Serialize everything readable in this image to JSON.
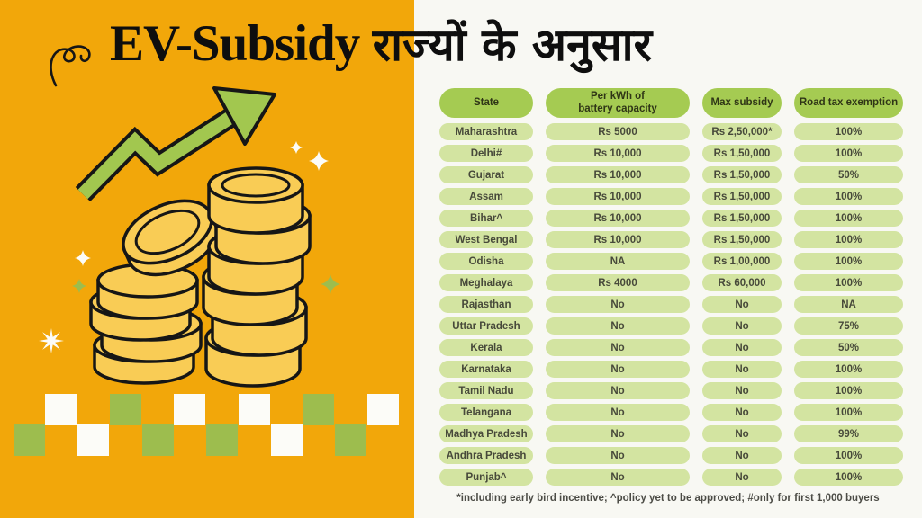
{
  "header": {
    "title_en": "EV-Subsidy",
    "title_hi": "राज्यों के अनुसार"
  },
  "chart_data": {
    "type": "table",
    "title": "EV-Subsidy राज्यों के अनुसार",
    "columns": [
      "State",
      "Per kWh of\nbattery capacity",
      "Max subsidy",
      "Road tax exemption"
    ],
    "rows": [
      [
        "Maharashtra",
        "Rs 5000",
        "Rs 2,50,000*",
        "100%"
      ],
      [
        "Delhi#",
        "Rs 10,000",
        "Rs 1,50,000",
        "100%"
      ],
      [
        "Gujarat",
        "Rs 10,000",
        "Rs 1,50,000",
        "50%"
      ],
      [
        "Assam",
        "Rs 10,000",
        "Rs 1,50,000",
        "100%"
      ],
      [
        "Bihar^",
        "Rs 10,000",
        "Rs 1,50,000",
        "100%"
      ],
      [
        "West Bengal",
        "Rs 10,000",
        "Rs 1,50,000",
        "100%"
      ],
      [
        "Odisha",
        "NA",
        "Rs 1,00,000",
        "100%"
      ],
      [
        "Meghalaya",
        "Rs 4000",
        "Rs 60,000",
        "100%"
      ],
      [
        "Rajasthan",
        "No",
        "No",
        "NA"
      ],
      [
        "Uttar Pradesh",
        "No",
        "No",
        "75%"
      ],
      [
        "Kerala",
        "No",
        "No",
        "50%"
      ],
      [
        "Karnataka",
        "No",
        "No",
        "100%"
      ],
      [
        "Tamil Nadu",
        "No",
        "No",
        "100%"
      ],
      [
        "Telangana",
        "No",
        "No",
        "100%"
      ],
      [
        "Madhya Pradesh",
        "No",
        "No",
        "99%"
      ],
      [
        "Andhra Pradesh",
        "No",
        "No",
        "100%"
      ],
      [
        "Punjab^",
        "No",
        "No",
        "100%"
      ]
    ],
    "footnote": "*including early bird incentive; ^policy yet to be approved; #only for first 1,000 buyers"
  },
  "icons": {
    "growth_arrow": "zigzag-up-right-arrow",
    "coins": "two-stacks-of-gold-coins",
    "sparkle": "four-point-sparkle",
    "starburst": "eight-point-star",
    "squiggle": "curl-doodle"
  },
  "colors": {
    "background_orange": "#F2A70A",
    "panel_white": "#F8F8F3",
    "header_pill_green": "#A5CB52",
    "data_pill_green": "#D3E4A1",
    "arrow_green": "#A2C74F",
    "coin_gold": "#F9CC55",
    "checker_green": "#9DBD4E",
    "checker_white": "#FCFCF8",
    "outline_ink": "#161616",
    "text_dark": "#47493A"
  },
  "decor": {
    "checker_top": [
      "white",
      "green",
      "white",
      "white",
      "green",
      "white"
    ],
    "checker_bottom": [
      "green",
      "white",
      "green",
      "green",
      "white",
      "green"
    ]
  }
}
